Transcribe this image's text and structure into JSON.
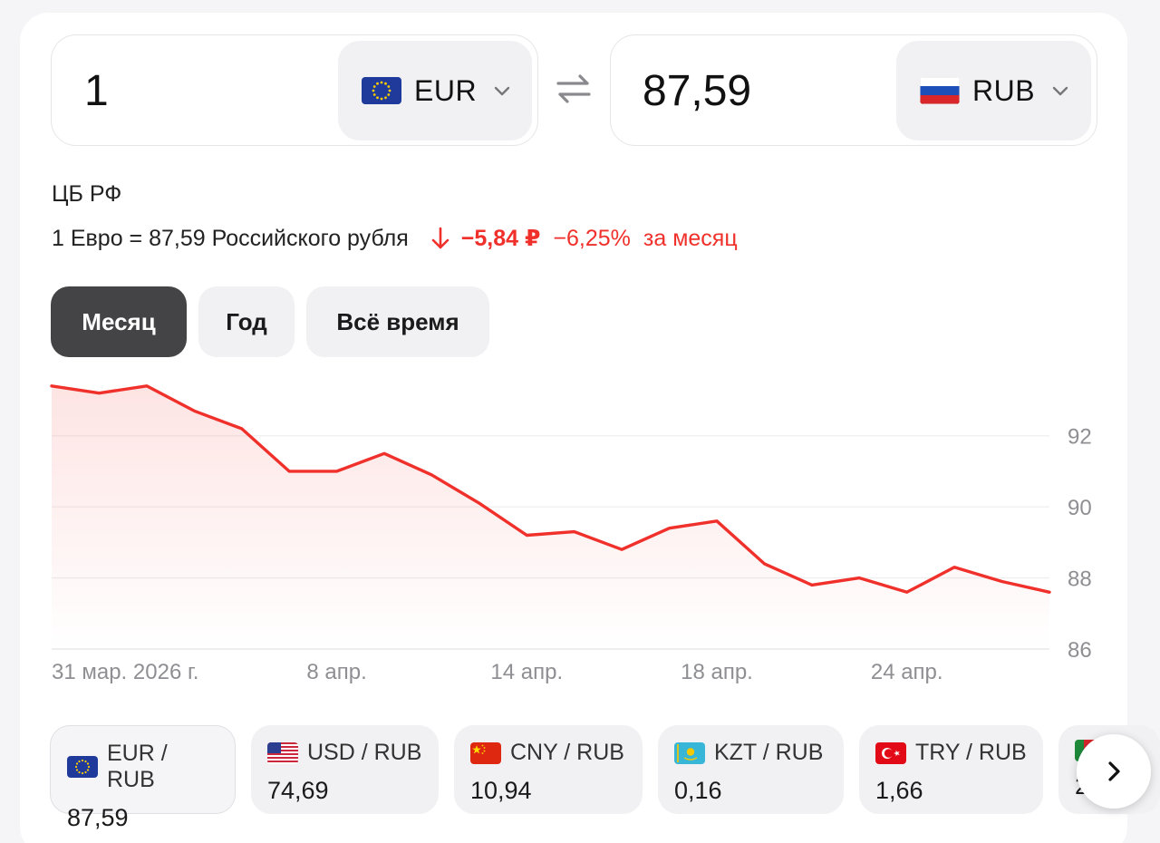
{
  "converter": {
    "from": {
      "amount": "1",
      "currency": "EUR",
      "flag_icon": "eu-flag-icon"
    },
    "to": {
      "amount": "87,59",
      "currency": "RUB",
      "flag_icon": "russia-flag-icon"
    }
  },
  "rate": {
    "source": "ЦБ РФ",
    "description": "1 Евро = 87,59 Российского рубля",
    "change_abs": "−5,84 ₽",
    "change_pct": "−6,25%",
    "change_period": "за месяц",
    "trend_color": "#f0302b"
  },
  "tabs": [
    {
      "label": "Месяц",
      "active": true
    },
    {
      "label": "Год",
      "active": false
    },
    {
      "label": "Всё время",
      "active": false
    }
  ],
  "chart_data": {
    "type": "line",
    "series": [
      {
        "name": "",
        "x": [
          "31 мар.",
          "1 апр.",
          "2 апр.",
          "3 апр.",
          "4 апр.",
          "7 апр.",
          "8 апр.",
          "9 апр.",
          "10 апр.",
          "11 апр.",
          "14 апр.",
          "15 апр.",
          "16 апр.",
          "17 апр.",
          "18 апр.",
          "21 апр.",
          "22 апр.",
          "23 апр.",
          "24 апр.",
          "25 апр.",
          "28 апр.",
          "29 апр."
        ],
        "values": [
          93.4,
          93.2,
          93.4,
          92.7,
          92.2,
          91.0,
          91.0,
          91.5,
          90.9,
          90.1,
          89.2,
          89.3,
          88.8,
          89.4,
          89.6,
          88.4,
          87.8,
          88.0,
          87.6,
          88.3,
          87.9,
          87.6
        ]
      }
    ],
    "xticks": [
      "31 мар. 2026 г.",
      "8 апр.",
      "14 апр.",
      "18 апр.",
      "24 апр."
    ],
    "yticks": [
      "92",
      "90",
      "88",
      "86"
    ],
    "ylim": [
      86,
      93.6
    ],
    "line_color": "#f0302b",
    "grid": true
  },
  "pairs": [
    {
      "label": "EUR / RUB",
      "value": "87,59",
      "flag_icon": "eu-flag-icon",
      "active": true
    },
    {
      "label": "USD / RUB",
      "value": "74,69",
      "flag_icon": "usa-flag-icon",
      "active": false
    },
    {
      "label": "CNY / RUB",
      "value": "10,94",
      "flag_icon": "china-flag-icon",
      "active": false
    },
    {
      "label": "KZT / RUB",
      "value": "0,16",
      "flag_icon": "kazakhstan-flag-icon",
      "active": false
    },
    {
      "label": "TRY / RUB",
      "value": "1,66",
      "flag_icon": "turkey-flag-icon",
      "active": false
    }
  ],
  "pairs_partial_value": "2",
  "icons": {
    "swap": "swap-arrows-icon",
    "next": "chevron-right-icon",
    "dropdown": "chevron-down-icon"
  }
}
